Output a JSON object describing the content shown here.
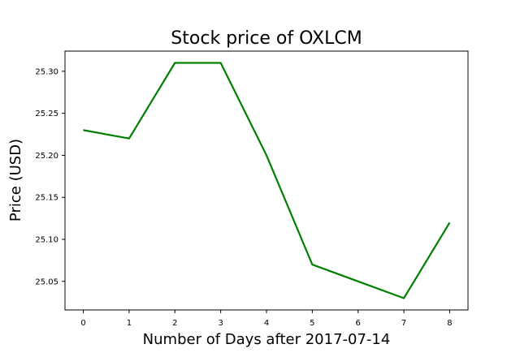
{
  "chart_data": {
    "type": "line",
    "title": "Stock price of OXLCM",
    "xlabel": "Number of Days after 2017-07-14",
    "ylabel": "Price (USD)",
    "x": [
      0,
      1,
      2,
      3,
      4,
      5,
      6,
      7,
      8
    ],
    "xlim": [
      -0.4,
      8.4
    ],
    "ylim": [
      25.016,
      25.324
    ],
    "yticks": [
      25.05,
      25.1,
      25.15,
      25.2,
      25.25,
      25.3
    ],
    "ytick_labels": [
      "25.05",
      "25.10",
      "25.15",
      "25.20",
      "25.25",
      "25.30"
    ],
    "xticks": [
      0,
      1,
      2,
      3,
      4,
      5,
      6,
      7,
      8
    ],
    "xtick_labels": [
      "0",
      "1",
      "2",
      "3",
      "4",
      "5",
      "6",
      "7",
      "8"
    ],
    "grid": false,
    "series": [
      {
        "color": "#008000",
        "values": [
          25.23,
          25.22,
          25.31,
          25.31,
          25.2,
          25.07,
          25.05,
          25.03,
          25.12
        ]
      }
    ]
  }
}
